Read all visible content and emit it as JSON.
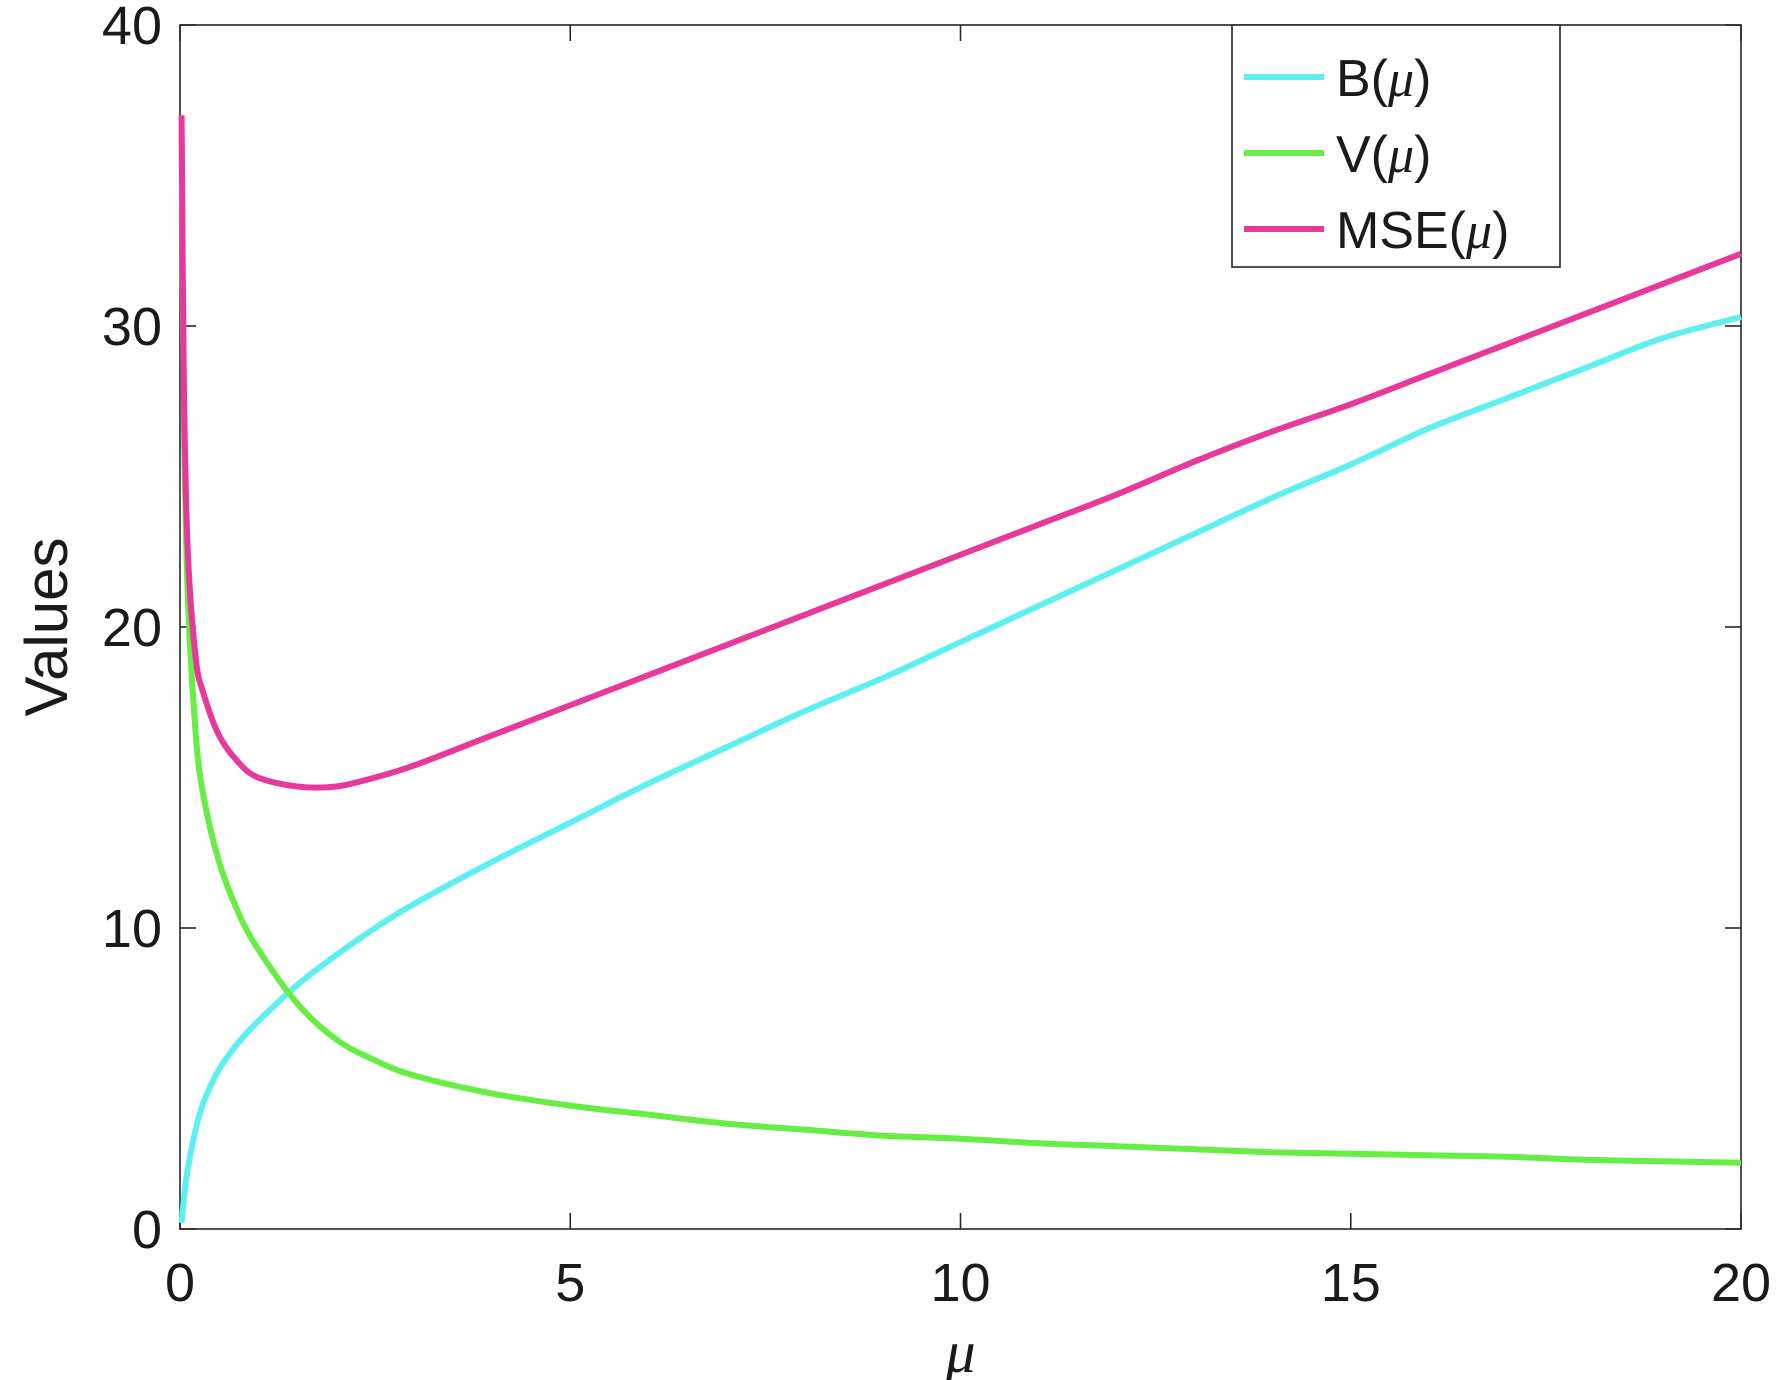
{
  "chart_data": {
    "type": "line",
    "title": "",
    "xlabel": "μ",
    "ylabel": "Values",
    "xlim": [
      0,
      20
    ],
    "ylim": [
      0,
      40
    ],
    "xticks": [
      0,
      5,
      10,
      15,
      20
    ],
    "yticks": [
      0,
      10,
      20,
      30,
      40
    ],
    "xtick_labels": [
      "0",
      "5",
      "10",
      "15",
      "20"
    ],
    "ytick_labels": [
      "0",
      "10",
      "20",
      "30",
      "40"
    ],
    "grid": false,
    "legend_position": "top-right",
    "x": [
      0.02,
      0.05,
      0.1,
      0.2,
      0.3,
      0.5,
      0.75,
      1,
      1.5,
      2,
      2.5,
      3,
      4,
      5,
      6,
      7,
      8,
      9,
      10,
      11,
      12,
      13,
      14,
      15,
      16,
      17,
      18,
      19,
      20
    ],
    "series": [
      {
        "name": "B(μ)",
        "legend_prefix": "B(",
        "legend_suffix": ")",
        "color": "#5ef0f0",
        "values": [
          0.2,
          1.0,
          2.0,
          3.3,
          4.2,
          5.3,
          6.2,
          6.9,
          8.1,
          9.1,
          10.0,
          10.8,
          12.2,
          13.5,
          14.8,
          16.0,
          17.2,
          18.3,
          19.5,
          20.7,
          21.9,
          23.1,
          24.3,
          25.4,
          26.6,
          27.6,
          28.6,
          29.6,
          30.3
        ]
      },
      {
        "name": "V(μ)",
        "legend_prefix": "V(",
        "legend_suffix": ")",
        "color": "#66ee44",
        "values": [
          36.5,
          27.0,
          21.0,
          16.5,
          14.4,
          12.2,
          10.5,
          9.3,
          7.5,
          6.3,
          5.6,
          5.1,
          4.5,
          4.1,
          3.8,
          3.5,
          3.3,
          3.1,
          3.0,
          2.85,
          2.75,
          2.65,
          2.55,
          2.5,
          2.45,
          2.4,
          2.3,
          2.25,
          2.2
        ]
      },
      {
        "name": "MSE(μ)",
        "legend_prefix": "MSE(",
        "legend_suffix": ")",
        "color": "#e8389c",
        "values": [
          37.0,
          28.0,
          22.5,
          19.0,
          17.8,
          16.4,
          15.5,
          15.0,
          14.7,
          14.7,
          15.0,
          15.4,
          16.4,
          17.4,
          18.4,
          19.4,
          20.4,
          21.4,
          22.4,
          23.4,
          24.4,
          25.5,
          26.5,
          27.4,
          28.4,
          29.4,
          30.4,
          31.4,
          32.4
        ]
      }
    ]
  }
}
